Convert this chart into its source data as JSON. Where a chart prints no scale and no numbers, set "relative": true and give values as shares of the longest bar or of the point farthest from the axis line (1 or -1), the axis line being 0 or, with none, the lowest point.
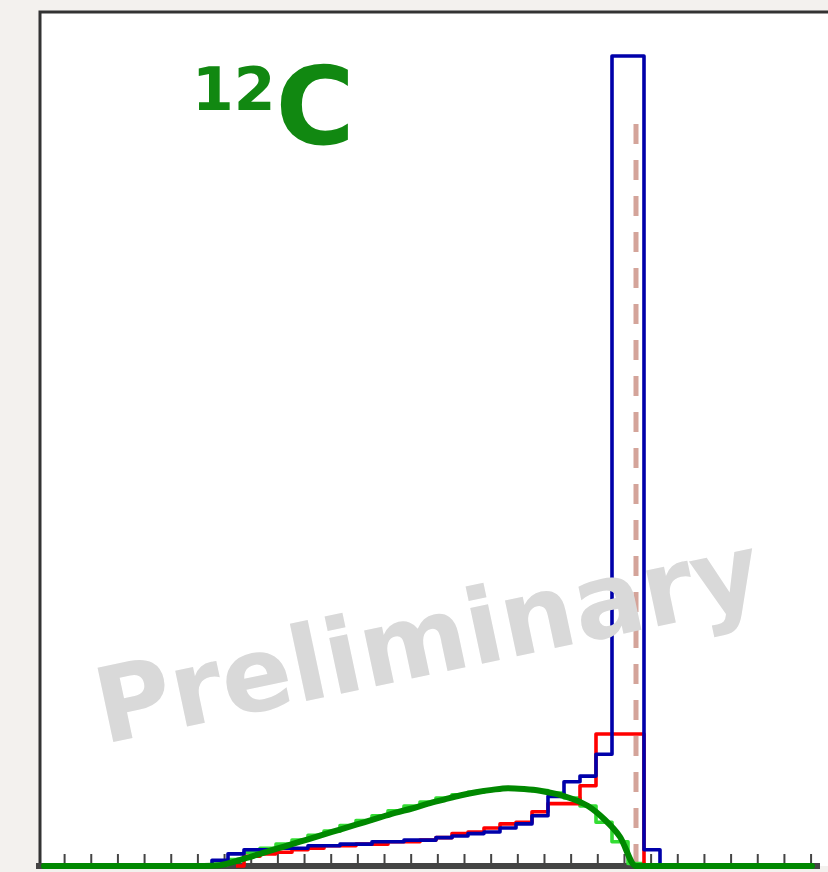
{
  "chart_data": {
    "type": "step",
    "relative": true,
    "categories": [
      null,
      null,
      null,
      null,
      null,
      null,
      null,
      null,
      null,
      null,
      null,
      null,
      null,
      null,
      null,
      null,
      null,
      null,
      null,
      null,
      null,
      null,
      null,
      null,
      null,
      null,
      null,
      null,
      null,
      null,
      null,
      null,
      null,
      null,
      null,
      null,
      null,
      null,
      null,
      null,
      null,
      null,
      null,
      null,
      null,
      null,
      null,
      null,
      null
    ],
    "series": [
      {
        "color": "#33dd33",
        "values": [
          null,
          null,
          null,
          null,
          null,
          null,
          null,
          null,
          null,
          null,
          0,
          0.002,
          0.008,
          0.017,
          0.022,
          0.027,
          0.032,
          0.038,
          0.043,
          0.05,
          0.056,
          0.062,
          0.068,
          0.074,
          0.079,
          0.084,
          0.088,
          0.091,
          0.094,
          0.096,
          0.095,
          0.093,
          0.09,
          0.084,
          0.074,
          0.054,
          0.03,
          0.003,
          0,
          null,
          null,
          null,
          null,
          null,
          null,
          null,
          null,
          null,
          null
        ]
      },
      {
        "color": "#ff0000",
        "values": [
          null,
          null,
          null,
          null,
          null,
          null,
          null,
          null,
          null,
          null,
          null,
          null,
          0,
          0.012,
          0.015,
          0.017,
          0.02,
          0.022,
          0.025,
          0.025,
          0.027,
          0.027,
          0.03,
          0.03,
          0.032,
          0.035,
          0.04,
          0.042,
          0.047,
          0.052,
          0.054,
          0.067,
          0.077,
          0.077,
          0.099,
          0.163,
          0.163,
          0.163,
          0,
          null,
          null,
          null,
          null,
          null,
          null,
          null,
          null,
          null,
          null
        ]
      },
      {
        "color": "#0000aa",
        "values": [
          null,
          null,
          null,
          null,
          null,
          null,
          null,
          null,
          null,
          null,
          0,
          0.007,
          0.015,
          0.02,
          0.02,
          0.022,
          0.022,
          0.025,
          0.025,
          0.027,
          0.027,
          0.03,
          0.03,
          0.032,
          0.032,
          0.035,
          0.037,
          0.04,
          0.042,
          0.047,
          0.052,
          0.062,
          0.086,
          0.104,
          0.111,
          0.138,
          1,
          1,
          0.02,
          0,
          null,
          null,
          null,
          null,
          null,
          null,
          null,
          null,
          null
        ]
      },
      {
        "type": "line",
        "color": "#008800",
        "values": [
          0,
          0,
          0,
          0,
          0,
          0,
          0,
          0,
          0,
          0,
          0,
          0.001,
          0.006,
          0.012,
          0.018,
          0.024,
          0.03,
          0.036,
          0.042,
          0.048,
          0.054,
          0.06,
          0.066,
          0.071,
          0.077,
          0.082,
          0.087,
          0.091,
          0.094,
          0.096,
          0.095,
          0.093,
          0.089,
          0.083,
          0.074,
          0.058,
          0.036,
          0,
          0,
          0,
          0,
          0,
          0,
          0,
          0,
          0,
          0,
          0,
          0
        ]
      }
    ],
    "annotations": [
      "$^{12}$C",
      "Preliminary"
    ]
  }
}
